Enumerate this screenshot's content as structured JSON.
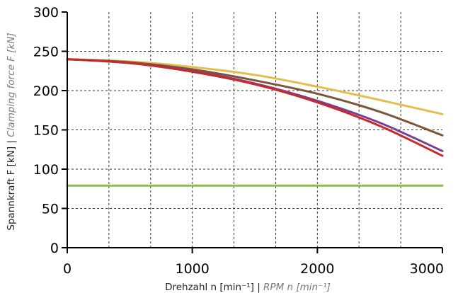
{
  "chart_data": {
    "type": "line",
    "xlabel": "Drehzahl n [min⁻¹] | RPM n [min⁻¹]",
    "xlabel_de": "Drehzahl n [min⁻¹] |",
    "xlabel_en": " RPM n [min⁻¹]",
    "ylabel": "Spannkraft F [kN] | Clamping force F [kN]",
    "ylabel_de": "Spannkraft F [kN] |",
    "ylabel_en": " Clamping force F [kN]",
    "xlim": [
      0,
      3000
    ],
    "ylim": [
      0,
      300
    ],
    "x_ticks": [
      0,
      1000,
      2000,
      3000
    ],
    "y_ticks": [
      0,
      50,
      100,
      150,
      200,
      250,
      300
    ],
    "x_grid": [
      333,
      667,
      1000,
      1333,
      1667,
      2000,
      2333,
      2667
    ],
    "y_grid": [
      50,
      100,
      150,
      200,
      250
    ],
    "grid": "dashed",
    "series": [
      {
        "color": "#8dbb4c",
        "x": [
          0,
          3000
        ],
        "y": [
          79,
          79
        ]
      },
      {
        "color": "#e3bd4e",
        "x": [
          0,
          500,
          1000,
          1500,
          2000,
          2500,
          3000
        ],
        "y": [
          240,
          237,
          230,
          220,
          205,
          188,
          170
        ]
      },
      {
        "color": "#7d5538",
        "x": [
          0,
          500,
          1000,
          1500,
          2000,
          2500,
          3000
        ],
        "y": [
          240,
          236,
          227,
          213,
          196,
          173,
          143
        ]
      },
      {
        "color": "#7a3f8f",
        "x": [
          0,
          500,
          1000,
          1500,
          2000,
          2500,
          3000
        ],
        "y": [
          240,
          235,
          225,
          209,
          187,
          159,
          123
        ]
      },
      {
        "color": "#c62a2a",
        "x": [
          0,
          500,
          1000,
          1500,
          2000,
          2500,
          3000
        ],
        "y": [
          240,
          235,
          224,
          208,
          185,
          155,
          117
        ]
      }
    ]
  }
}
